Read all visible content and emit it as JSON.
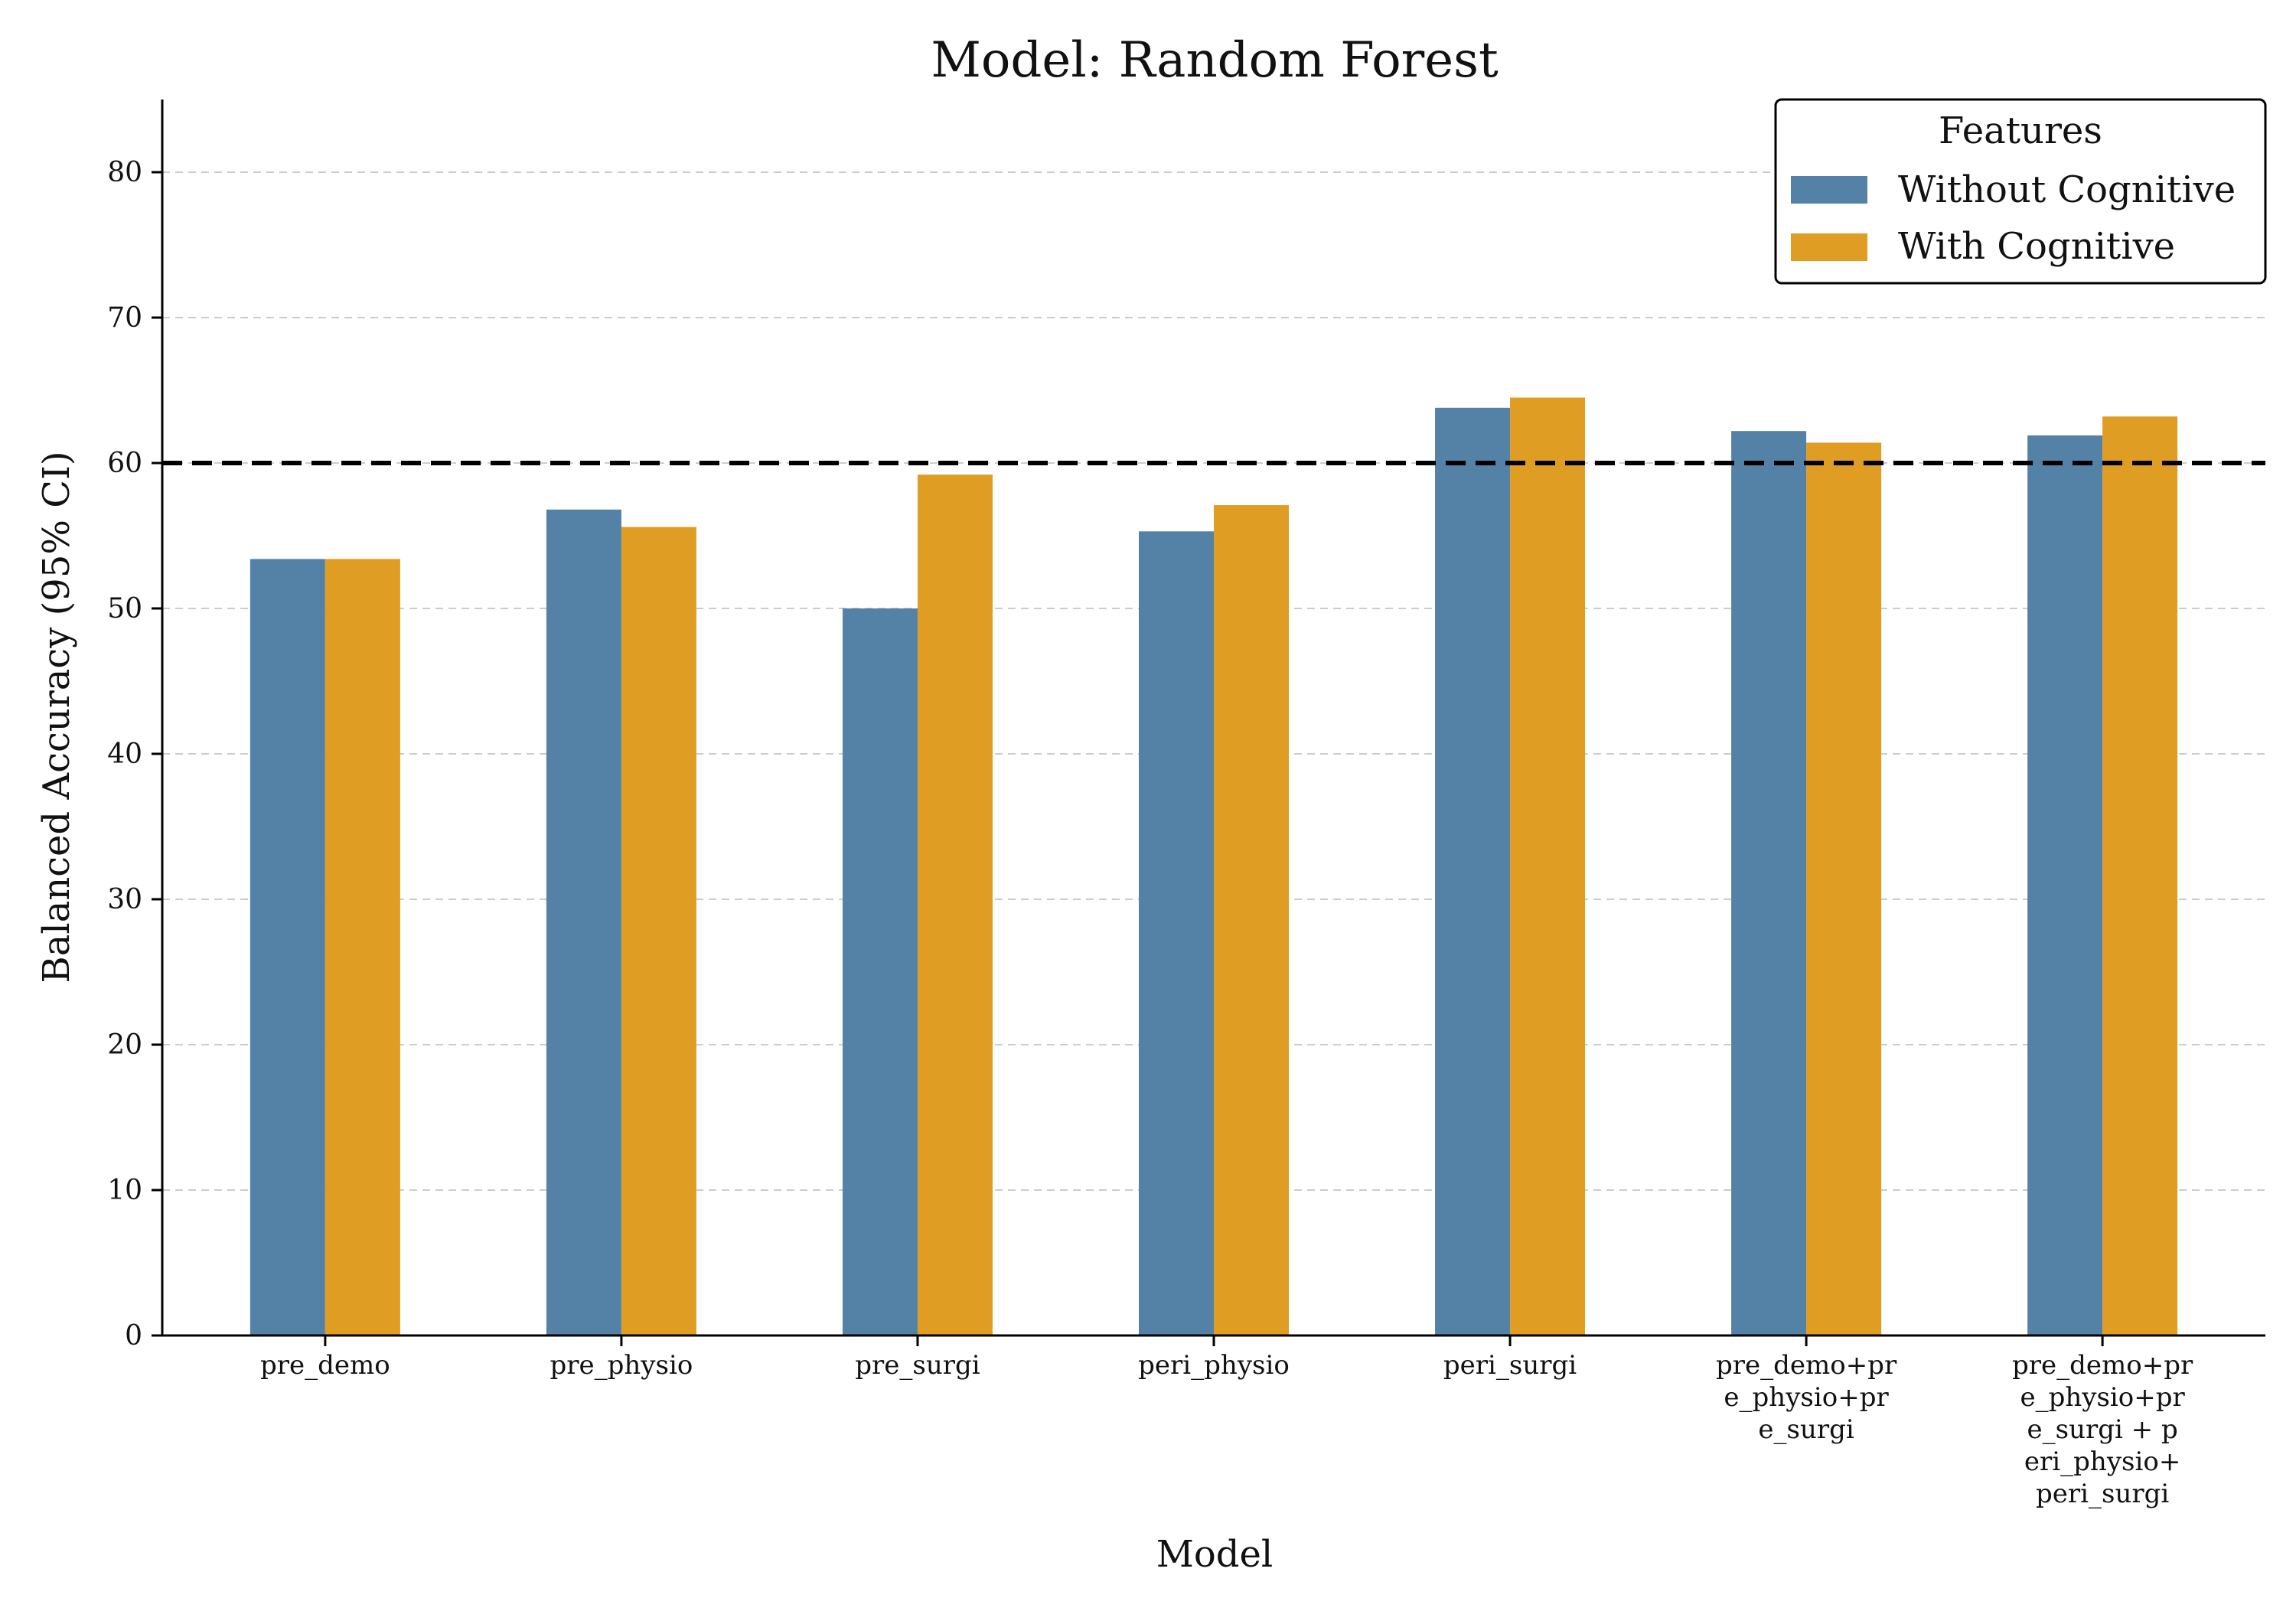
{
  "chart_data": {
    "type": "bar",
    "title": "Model: Random Forest",
    "xlabel": "Model",
    "ylabel": "Balanced Accuracy (95% CI)",
    "categories": [
      [
        "pre_demo"
      ],
      [
        "pre_physio"
      ],
      [
        "pre_surgi"
      ],
      [
        "peri_physio"
      ],
      [
        "peri_surgi"
      ],
      [
        "pre_demo+pr",
        "e_physio+pr",
        "e_surgi"
      ],
      [
        "pre_demo+pr",
        "e_physio+pr",
        "e_surgi + p",
        "eri_physio+",
        "peri_surgi"
      ]
    ],
    "series": [
      {
        "name": "Without Cognitive",
        "color": "#5482a7",
        "values": [
          53.4,
          56.8,
          50.0,
          55.3,
          63.8,
          62.2,
          61.9
        ]
      },
      {
        "name": "With Cognitive",
        "color": "#df9d23",
        "values": [
          53.4,
          55.6,
          59.2,
          57.1,
          64.5,
          61.4,
          63.2
        ]
      }
    ],
    "ylim": [
      0,
      85
    ],
    "yticks": [
      0,
      10,
      20,
      30,
      40,
      50,
      60,
      70,
      80
    ],
    "reference_line": {
      "value": 60,
      "style": "dashed",
      "color": "#000000"
    },
    "grid": {
      "y": true,
      "style": "dashed",
      "color": "#cccccc"
    },
    "legend": {
      "title": "Features",
      "placement": "top-right"
    }
  }
}
